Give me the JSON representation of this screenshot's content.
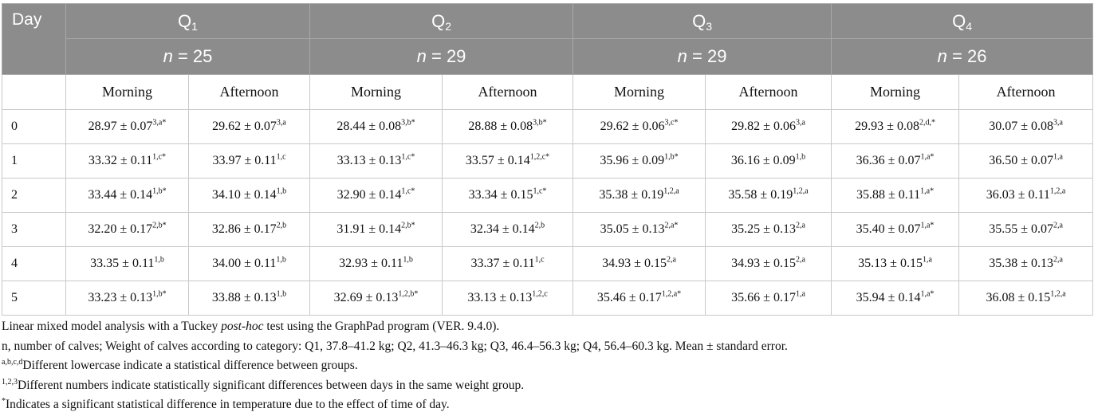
{
  "header": {
    "day_label": "Day",
    "groups": [
      {
        "label": "Q",
        "sub": "1",
        "n_prefix": "n",
        "n_value": " = 25"
      },
      {
        "label": "Q",
        "sub": "2",
        "n_prefix": "n",
        "n_value": " = 29"
      },
      {
        "label": "Q",
        "sub": "3",
        "n_prefix": "n",
        "n_value": " = 29"
      },
      {
        "label": "Q",
        "sub": "4",
        "n_prefix": "n",
        "n_value": " = 26"
      }
    ],
    "morning": "Morning",
    "afternoon": "Afternoon"
  },
  "rows": [
    {
      "day": "0",
      "cells": [
        {
          "v": "28.97 ± 0.07",
          "s": "3,a*"
        },
        {
          "v": "29.62 ± 0.07",
          "s": "3,a"
        },
        {
          "v": "28.44 ± 0.08",
          "s": "3,b*"
        },
        {
          "v": "28.88 ± 0.08",
          "s": "3,b*"
        },
        {
          "v": "29.62 ± 0.06",
          "s": "3,c*"
        },
        {
          "v": "29.82 ± 0.06",
          "s": "3,a"
        },
        {
          "v": "29.93 ± 0.08",
          "s": "2,d,*"
        },
        {
          "v": "30.07 ± 0.08",
          "s": "3,a"
        }
      ]
    },
    {
      "day": "1",
      "cells": [
        {
          "v": "33.32 ± 0.11",
          "s": "1,c*"
        },
        {
          "v": "33.97 ± 0.11",
          "s": "1,c"
        },
        {
          "v": "33.13 ± 0.13",
          "s": "1,c*"
        },
        {
          "v": "33.57 ± 0.14",
          "s": "1,2,c*"
        },
        {
          "v": "35.96 ± 0.09",
          "s": "1,b*"
        },
        {
          "v": "36.16 ± 0.09",
          "s": "1,b"
        },
        {
          "v": "36.36 ± 0.07",
          "s": "1,a*"
        },
        {
          "v": "36.50 ± 0.07",
          "s": "1,a"
        }
      ]
    },
    {
      "day": "2",
      "cells": [
        {
          "v": "33.44 ± 0.14",
          "s": "1,b*"
        },
        {
          "v": "34.10 ± 0.14",
          "s": "1,b"
        },
        {
          "v": "32.90 ± 0.14",
          "s": "1,c*"
        },
        {
          "v": "33.34 ± 0.15",
          "s": "1,c*"
        },
        {
          "v": "35.38 ± 0.19",
          "s": "1,2,a"
        },
        {
          "v": "35.58 ± 0.19",
          "s": "1,2,a"
        },
        {
          "v": "35.88 ± 0.11",
          "s": "1,a*"
        },
        {
          "v": "36.03 ± 0.11",
          "s": "1,2,a"
        }
      ]
    },
    {
      "day": "3",
      "cells": [
        {
          "v": "32.20 ± 0.17",
          "s": "2,b*"
        },
        {
          "v": "32.86 ± 0.17",
          "s": "2,b"
        },
        {
          "v": "31.91 ± 0.14",
          "s": "2,b*"
        },
        {
          "v": "32.34 ± 0.14",
          "s": "2,b"
        },
        {
          "v": "35.05 ± 0.13",
          "s": "2,a*"
        },
        {
          "v": "35.25 ± 0.13",
          "s": "2,a"
        },
        {
          "v": "35.40 ± 0.07",
          "s": "1,a*"
        },
        {
          "v": "35.55 ± 0.07",
          "s": "2,a"
        }
      ]
    },
    {
      "day": "4",
      "cells": [
        {
          "v": "33.35 ± 0.11",
          "s": "1,b"
        },
        {
          "v": "34.00 ± 0.11",
          "s": "1,b"
        },
        {
          "v": "32.93 ± 0.11",
          "s": "1,b"
        },
        {
          "v": "33.37 ± 0.11",
          "s": "1,c"
        },
        {
          "v": "34.93 ± 0.15",
          "s": "2,a"
        },
        {
          "v": "34.93 ± 0.15",
          "s": "2,a"
        },
        {
          "v": "35.13 ± 0.15",
          "s": "1,a"
        },
        {
          "v": "35.38 ± 0.13",
          "s": "2,a"
        }
      ]
    },
    {
      "day": "5",
      "cells": [
        {
          "v": "33.23 ± 0.13",
          "s": "1,b*"
        },
        {
          "v": "33.88 ± 0.13",
          "s": "1,b"
        },
        {
          "v": "32.69 ± 0.13",
          "s": "1,2,b*"
        },
        {
          "v": "33.13 ± 0.13",
          "s": "1,2,c"
        },
        {
          "v": "35.46 ± 0.17",
          "s": "1,2,a*"
        },
        {
          "v": "35.66 ± 0.17",
          "s": "1,a"
        },
        {
          "v": "35.94 ± 0.14",
          "s": "1,a*"
        },
        {
          "v": "36.08 ± 0.15",
          "s": "1,2,a"
        }
      ]
    }
  ],
  "notes": {
    "line1_pre": "Linear mixed model analysis with a Tuckey ",
    "line1_italic": "post-hoc",
    "line1_post": " test using the GraphPad program (VER. 9.4.0).",
    "line2": "n, number of calves; Weight of calves according to category: Q1, 37.8–41.2 kg; Q2, 41.3–46.3 kg; Q3, 46.4–56.3 kg; Q4, 56.4–60.3 kg. Mean ± standard error.",
    "line3_sup": "a,b,c,d",
    "line3_text": "Different lowercase indicate a statistical difference between groups.",
    "line4_sup": "1,2,3",
    "line4_text": "Different numbers indicate statistically significant differences between days in the same weight group.",
    "line5_sup": "*",
    "line5_text": "Indicates a significant statistical difference in temperature due to the effect of time of day."
  }
}
